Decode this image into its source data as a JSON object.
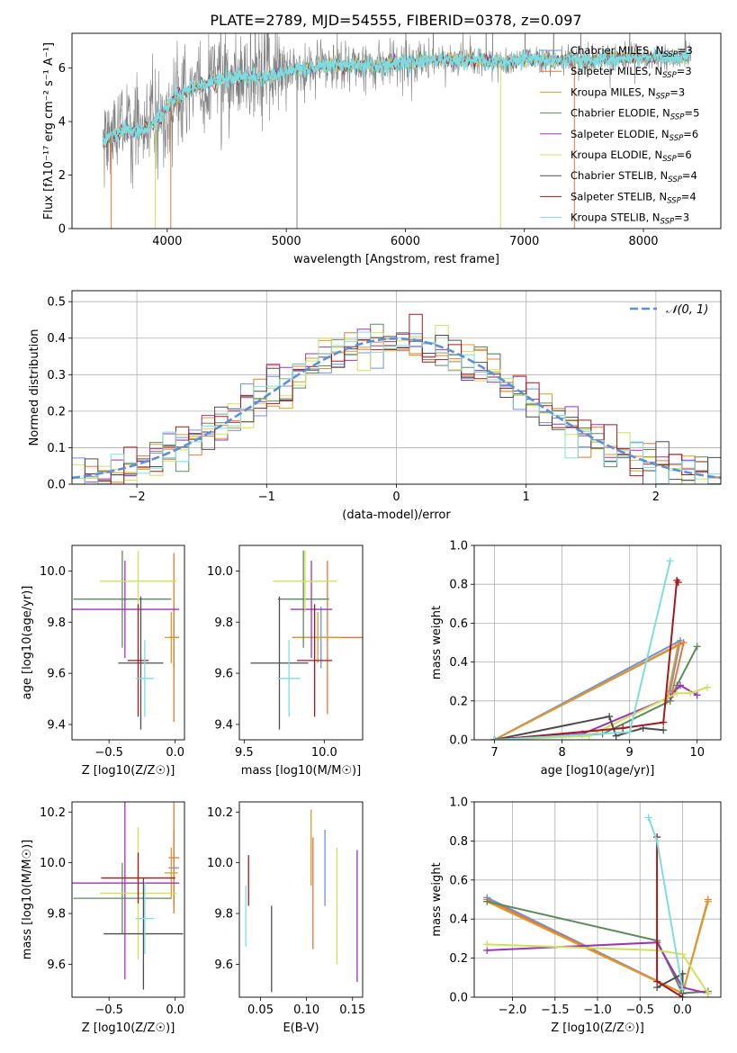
{
  "figure": {
    "title": "PLATE=2789, MJD=54555, FIBERID=0378, z=0.097"
  },
  "models": [
    {
      "name": "Chabrier MILES",
      "nssp": "3",
      "color": "#6f8fe0"
    },
    {
      "name": "Salpeter MILES",
      "nssp": "3",
      "color": "#e07a33"
    },
    {
      "name": "Kroupa MILES",
      "nssp": "3",
      "color": "#d99b2b"
    },
    {
      "name": "Chabrier ELODIE",
      "nssp": "5",
      "color": "#5c8a5c"
    },
    {
      "name": "Salpeter ELODIE",
      "nssp": "6",
      "color": "#9b35b0"
    },
    {
      "name": "Kroupa ELODIE",
      "nssp": "6",
      "color": "#cfe05a"
    },
    {
      "name": "Chabrier STELIB",
      "nssp": "4",
      "color": "#4d4d4d"
    },
    {
      "name": "Salpeter STELIB",
      "nssp": "4",
      "color": "#a3191d"
    },
    {
      "name": "Kroupa STELIB",
      "nssp": "3",
      "color": "#7fdde0"
    }
  ],
  "chart_data": [
    {
      "id": "spectrum",
      "type": "line",
      "title": "PLATE=2789, MJD=54555, FIBERID=0378, z=0.097",
      "xlabel": "wavelength [Angstrom, rest frame]",
      "ylabel": "Flux [fλ10⁻¹⁷ erg cm⁻² s⁻¹ A⁻¹]",
      "xlim": [
        3200,
        8650
      ],
      "ylim": [
        0,
        7.3
      ],
      "xticks": [
        4000,
        5000,
        6000,
        7000,
        8000
      ],
      "yticks": [
        0,
        2,
        4,
        6
      ],
      "grid": false,
      "legend": "top-right",
      "observed_color": "#808080",
      "model_color": "#7fdde0",
      "continuum": {
        "x": [
          3450,
          3550,
          3650,
          3750,
          3850,
          3950,
          4050,
          4200,
          4400,
          4600,
          4800,
          5000,
          5200,
          5400,
          5600,
          5800,
          6000,
          6200,
          6400,
          6600,
          6800,
          7000,
          7200,
          7400,
          7600,
          7800,
          8000,
          8200,
          8400
        ],
        "y": [
          3.3,
          3.5,
          3.7,
          3.6,
          3.8,
          4.2,
          4.9,
          5.2,
          5.5,
          5.7,
          5.6,
          5.9,
          6.0,
          6.1,
          6.1,
          6.1,
          6.2,
          6.3,
          6.3,
          6.3,
          6.2,
          6.3,
          6.3,
          6.3,
          6.3,
          6.4,
          6.4,
          6.4,
          6.4
        ]
      }
    },
    {
      "id": "residuals",
      "type": "line",
      "xlabel": "(data-model)/error",
      "ylabel": "Normed distribution",
      "xlim": [
        -2.5,
        2.5
      ],
      "ylim": [
        0,
        0.53
      ],
      "xticks": [
        -2,
        -1,
        0,
        1,
        2
      ],
      "yticks": [
        0.0,
        0.1,
        0.2,
        0.3,
        0.4,
        0.5
      ],
      "grid": true,
      "legend": "top-right",
      "series": [
        {
          "name": "𝒩(0, 1)",
          "mean": 0,
          "sigma": 1,
          "style": "dashed",
          "color": "#5b8fd6"
        }
      ],
      "hist_bin_width": 0.1
    },
    {
      "id": "age-vs-Z",
      "type": "scatter",
      "xlabel": "Z [log10(Z/Z☉)]",
      "ylabel": "age  [log10(age/yr)]",
      "xlim": [
        -0.78,
        0.07
      ],
      "ylim": [
        9.34,
        10.1
      ],
      "xticks": [
        -0.5,
        0.0
      ],
      "yticks": [
        9.4,
        9.6,
        9.8,
        10.0
      ],
      "points": [
        {
          "model": "Chabrier MILES",
          "x": -0.01,
          "xe": 0.04,
          "y": 9.74,
          "ye": 0.12
        },
        {
          "model": "Salpeter MILES",
          "x": -0.01,
          "xe": 0.04,
          "y": 9.74,
          "ye": 0.33
        },
        {
          "model": "Kroupa MILES",
          "x": -0.03,
          "xe": 0.05,
          "y": 9.74,
          "ye": 0.1
        },
        {
          "model": "Chabrier ELODIE",
          "x": -0.4,
          "xe": 0.37,
          "y": 9.89,
          "ye": 0.19
        },
        {
          "model": "Salpeter ELODIE",
          "x": -0.38,
          "xe": 0.41,
          "y": 9.85,
          "ye": 0.19
        },
        {
          "model": "Kroupa ELODIE",
          "x": -0.28,
          "xe": 0.29,
          "y": 9.96,
          "ye": 0.12
        },
        {
          "model": "Chabrier STELIB",
          "x": -0.26,
          "xe": 0.17,
          "y": 9.64,
          "ye": 0.26
        },
        {
          "model": "Salpeter STELIB",
          "x": -0.28,
          "xe": 0.08,
          "y": 9.65,
          "ye": 0.22
        },
        {
          "model": "Kroupa STELIB",
          "x": -0.23,
          "xe": 0.07,
          "y": 9.58,
          "ye": 0.15
        }
      ]
    },
    {
      "id": "age-vs-mass",
      "type": "scatter",
      "xlabel": "mass [log10(M/M☉)]",
      "ylabel": "",
      "xlim": [
        9.47,
        10.24
      ],
      "ylim": [
        9.34,
        10.1
      ],
      "xticks": [
        9.5,
        10.0
      ],
      "yticks": [
        9.4,
        9.6,
        9.8,
        10.0
      ],
      "points": [
        {
          "model": "Chabrier MILES",
          "x": 9.98,
          "xe": 0.1,
          "y": 9.74,
          "ye": 0.12
        },
        {
          "model": "Salpeter MILES",
          "x": 10.02,
          "xe": 0.22,
          "y": 9.74,
          "ye": 0.3
        },
        {
          "model": "Kroupa MILES",
          "x": 9.96,
          "xe": 0.14,
          "y": 9.74,
          "ye": 0.1
        },
        {
          "model": "Chabrier ELODIE",
          "x": 9.87,
          "xe": 0.16,
          "y": 9.89,
          "ye": 0.19
        },
        {
          "model": "Salpeter ELODIE",
          "x": 9.92,
          "xe": 0.13,
          "y": 9.85,
          "ye": 0.19
        },
        {
          "model": "Kroupa ELODIE",
          "x": 9.88,
          "xe": 0.2,
          "y": 9.96,
          "ye": 0.12
        },
        {
          "model": "Chabrier STELIB",
          "x": 9.72,
          "xe": 0.18,
          "y": 9.64,
          "ye": 0.26
        },
        {
          "model": "Salpeter STELIB",
          "x": 9.94,
          "xe": 0.11,
          "y": 9.65,
          "ye": 0.22
        },
        {
          "model": "Kroupa STELIB",
          "x": 9.78,
          "xe": 0.07,
          "y": 9.58,
          "ye": 0.15
        }
      ]
    },
    {
      "id": "weight-vs-age",
      "type": "line",
      "xlabel": "age  [log10(age/yr)]",
      "ylabel": "mass weight",
      "xlim": [
        6.7,
        10.35
      ],
      "ylim": [
        0,
        1.0
      ],
      "xticks": [
        7,
        8,
        9,
        10
      ],
      "yticks": [
        0.0,
        0.2,
        0.4,
        0.6,
        0.8,
        1.0
      ],
      "grid": true,
      "series": [
        {
          "name": "Chabrier MILES",
          "x": [
            7.0,
            9.75,
            9.6
          ],
          "y": [
            0.0,
            0.51,
            0.25
          ]
        },
        {
          "name": "Salpeter MILES",
          "x": [
            7.0,
            9.8,
            9.6
          ],
          "y": [
            0.0,
            0.5,
            0.2
          ]
        },
        {
          "name": "Kroupa MILES",
          "x": [
            7.0,
            9.72,
            9.55
          ],
          "y": [
            0.0,
            0.49,
            0.2
          ]
        },
        {
          "name": "Chabrier ELODIE",
          "x": [
            7.0,
            8.6,
            9.6,
            9.7,
            10.0
          ],
          "y": [
            0.0,
            0.03,
            0.2,
            0.28,
            0.48
          ]
        },
        {
          "name": "Salpeter ELODIE",
          "x": [
            7.0,
            8.3,
            9.6,
            9.75,
            10.0
          ],
          "y": [
            0.0,
            0.03,
            0.22,
            0.28,
            0.23
          ]
        },
        {
          "name": "Kroupa ELODIE",
          "x": [
            7.0,
            8.4,
            9.7,
            9.9,
            10.15
          ],
          "y": [
            0.0,
            0.02,
            0.24,
            0.24,
            0.27
          ]
        },
        {
          "name": "Chabrier STELIB",
          "x": [
            7.0,
            8.7,
            8.8,
            9.2,
            9.5
          ],
          "y": [
            0.0,
            0.12,
            0.02,
            0.06,
            0.05
          ]
        },
        {
          "name": "Salpeter STELIB",
          "x": [
            7.0,
            8.9,
            9.5,
            9.7,
            9.72
          ],
          "y": [
            0.0,
            0.06,
            0.09,
            0.82,
            0.81
          ]
        },
        {
          "name": "Kroupa STELIB",
          "x": [
            7.0,
            9.0,
            9.6
          ],
          "y": [
            0.0,
            0.04,
            0.92
          ]
        }
      ]
    },
    {
      "id": "mass-vs-Z",
      "type": "scatter",
      "xlabel": "Z [log10(Z/Z☉)]",
      "ylabel": "mass [log10(M/M☉)]",
      "xlim": [
        -0.78,
        0.07
      ],
      "ylim": [
        9.47,
        10.24
      ],
      "xticks": [
        -0.5,
        0.0
      ],
      "yticks": [
        9.6,
        9.8,
        10.0,
        10.2
      ],
      "points": [
        {
          "model": "Chabrier MILES",
          "x": -0.01,
          "xe": 0.04,
          "y": 9.98,
          "ye": 0.15
        },
        {
          "model": "Salpeter MILES",
          "x": -0.01,
          "xe": 0.04,
          "y": 10.02,
          "ye": 0.22
        },
        {
          "model": "Kroupa MILES",
          "x": -0.03,
          "xe": 0.05,
          "y": 9.96,
          "ye": 0.1
        },
        {
          "model": "Chabrier ELODIE",
          "x": -0.4,
          "xe": 0.37,
          "y": 9.86,
          "ye": 0.14
        },
        {
          "model": "Salpeter ELODIE",
          "x": -0.38,
          "xe": 0.41,
          "y": 9.92,
          "ye": 0.38
        },
        {
          "model": "Kroupa ELODIE",
          "x": -0.28,
          "xe": 0.29,
          "y": 9.88,
          "ye": 0.26
        },
        {
          "model": "Chabrier STELIB",
          "x": -0.24,
          "xe": 0.3,
          "y": 9.72,
          "ye": 0.22
        },
        {
          "model": "Salpeter STELIB",
          "x": -0.28,
          "xe": 0.28,
          "y": 9.94,
          "ye": 0.1
        },
        {
          "model": "Kroupa STELIB",
          "x": -0.23,
          "xe": 0.07,
          "y": 9.78,
          "ye": 0.14
        }
      ]
    },
    {
      "id": "mass-vs-ebv",
      "type": "scatter",
      "xlabel": "E(B-V)",
      "ylabel": "",
      "xlim": [
        0.027,
        0.161
      ],
      "ylim": [
        9.47,
        10.24
      ],
      "xticks": [
        0.05,
        0.1,
        0.15
      ],
      "yticks": [
        9.6,
        9.8,
        10.0,
        10.2
      ],
      "points": [
        {
          "model": "Chabrier MILES",
          "x": 0.12,
          "xe": 0,
          "y": 9.98,
          "ye": 0.15
        },
        {
          "model": "Salpeter MILES",
          "x": 0.107,
          "xe": 0,
          "y": 9.88,
          "ye": 0.22
        },
        {
          "model": "Kroupa MILES",
          "x": 0.105,
          "xe": 0,
          "y": 10.06,
          "ye": 0.15
        },
        {
          "model": "Salpeter ELODIE",
          "x": 0.155,
          "xe": 0,
          "y": 9.79,
          "ye": 0.26
        },
        {
          "model": "Kroupa ELODIE",
          "x": 0.133,
          "xe": 0,
          "y": 9.83,
          "ye": 0.23
        },
        {
          "model": "Chabrier STELIB",
          "x": 0.062,
          "xe": 0,
          "y": 9.66,
          "ye": 0.17
        },
        {
          "model": "Salpeter STELIB",
          "x": 0.037,
          "xe": 0,
          "y": 9.93,
          "ye": 0.1
        },
        {
          "model": "Kroupa STELIB",
          "x": 0.034,
          "xe": 0,
          "y": 9.79,
          "ye": 0.12
        }
      ]
    },
    {
      "id": "weight-vs-Z",
      "type": "line",
      "xlabel": "Z [log10(Z/Z☉)]",
      "ylabel": "mass weight",
      "xlim": [
        -2.45,
        0.45
      ],
      "ylim": [
        0,
        1.0
      ],
      "xticks": [
        -2.0,
        -1.5,
        -1.0,
        -0.5,
        0.0
      ],
      "yticks": [
        0.0,
        0.2,
        0.4,
        0.6,
        0.8,
        1.0
      ],
      "grid": true,
      "series": [
        {
          "name": "Chabrier MILES",
          "x": [
            -2.3,
            0.0,
            0.3
          ],
          "y": [
            0.51,
            0.02,
            0.03
          ]
        },
        {
          "name": "Salpeter MILES",
          "x": [
            -2.3,
            0.0,
            0.3
          ],
          "y": [
            0.5,
            0.02,
            0.5
          ]
        },
        {
          "name": "Kroupa MILES",
          "x": [
            -2.3,
            0.0,
            0.3
          ],
          "y": [
            0.49,
            0.02,
            0.49
          ]
        },
        {
          "name": "Chabrier ELODIE",
          "x": [
            -2.3,
            -0.3,
            0.0,
            0.3
          ],
          "y": [
            0.49,
            0.29,
            0.02,
            0.03
          ]
        },
        {
          "name": "Salpeter ELODIE",
          "x": [
            -2.3,
            -0.3,
            0.0,
            0.3
          ],
          "y": [
            0.24,
            0.28,
            0.05,
            0.02
          ]
        },
        {
          "name": "Kroupa ELODIE",
          "x": [
            -2.3,
            -0.3,
            0.0,
            0.3
          ],
          "y": [
            0.27,
            0.24,
            0.22,
            0.02
          ]
        },
        {
          "name": "Chabrier STELIB",
          "x": [
            -0.3,
            0.0,
            0.0
          ],
          "y": [
            0.05,
            0.12,
            0.02
          ]
        },
        {
          "name": "Salpeter STELIB",
          "x": [
            -0.3,
            -0.3,
            0.0
          ],
          "y": [
            0.82,
            0.08,
            0.0
          ]
        },
        {
          "name": "Kroupa STELIB",
          "x": [
            -0.4,
            -0.3,
            0.0
          ],
          "y": [
            0.92,
            0.8,
            0.04
          ]
        }
      ]
    }
  ]
}
